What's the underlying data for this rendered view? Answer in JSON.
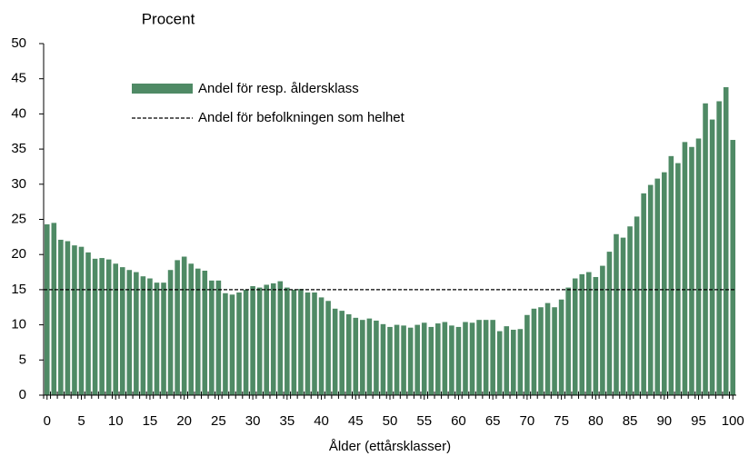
{
  "chart_data": {
    "type": "bar",
    "y_axis_label": "Procent",
    "x_axis_label": "Ålder (ettårsklasser)",
    "x": [
      0,
      1,
      2,
      3,
      4,
      5,
      6,
      7,
      8,
      9,
      10,
      11,
      12,
      13,
      14,
      15,
      16,
      17,
      18,
      19,
      20,
      21,
      22,
      23,
      24,
      25,
      26,
      27,
      28,
      29,
      30,
      31,
      32,
      33,
      34,
      35,
      36,
      37,
      38,
      39,
      40,
      41,
      42,
      43,
      44,
      45,
      46,
      47,
      48,
      49,
      50,
      51,
      52,
      53,
      54,
      55,
      56,
      57,
      58,
      59,
      60,
      61,
      62,
      63,
      64,
      65,
      66,
      67,
      68,
      69,
      70,
      71,
      72,
      73,
      74,
      75,
      76,
      77,
      78,
      79,
      80,
      81,
      82,
      83,
      84,
      85,
      86,
      87,
      88,
      89,
      90,
      91,
      92,
      93,
      94,
      95,
      96,
      97,
      98,
      99,
      100
    ],
    "series": [
      {
        "name": "Andel för resp. åldersklass",
        "color": "#4f8a65",
        "values": [
          24.3,
          24.5,
          22.1,
          21.9,
          21.3,
          21.1,
          20.3,
          19.4,
          19.5,
          19.3,
          18.7,
          18.2,
          17.8,
          17.5,
          16.9,
          16.6,
          16.0,
          16.0,
          17.8,
          19.2,
          19.7,
          18.7,
          18.0,
          17.7,
          16.3,
          16.3,
          14.5,
          14.3,
          14.6,
          15.0,
          15.5,
          15.3,
          15.7,
          15.9,
          16.2,
          15.3,
          15.0,
          15.1,
          14.6,
          14.6,
          13.9,
          13.4,
          12.3,
          12.0,
          11.5,
          11.0,
          10.7,
          10.9,
          10.6,
          10.1,
          9.7,
          10.0,
          9.9,
          9.6,
          10.0,
          10.3,
          9.7,
          10.2,
          10.4,
          9.9,
          9.7,
          10.4,
          10.3,
          10.7,
          10.7,
          10.7,
          9.1,
          9.8,
          9.3,
          9.4,
          11.4,
          12.3,
          12.5,
          13.1,
          12.5,
          13.6,
          15.3,
          16.6,
          17.2,
          17.5,
          16.8,
          18.4,
          20.4,
          22.9,
          22.4,
          24.0,
          25.4,
          28.7,
          29.9,
          30.8,
          31.7,
          34.0,
          33.0,
          36.0,
          35.3,
          36.5,
          41.5,
          39.2,
          41.8,
          43.8,
          36.3
        ]
      }
    ],
    "reference_line": {
      "name": "Andel för befolkningen som helhet",
      "value": 15,
      "color": "#000000"
    },
    "xlim": [
      -0.5,
      100.5
    ],
    "xticks": [
      0,
      5,
      10,
      15,
      20,
      25,
      30,
      35,
      40,
      45,
      50,
      55,
      60,
      65,
      70,
      75,
      80,
      85,
      90,
      95,
      100
    ],
    "ylim": [
      0,
      50
    ],
    "yticks": [
      0,
      5,
      10,
      15,
      20,
      25,
      30,
      35,
      40,
      45,
      50
    ],
    "grid": false,
    "legend": "upper left"
  }
}
